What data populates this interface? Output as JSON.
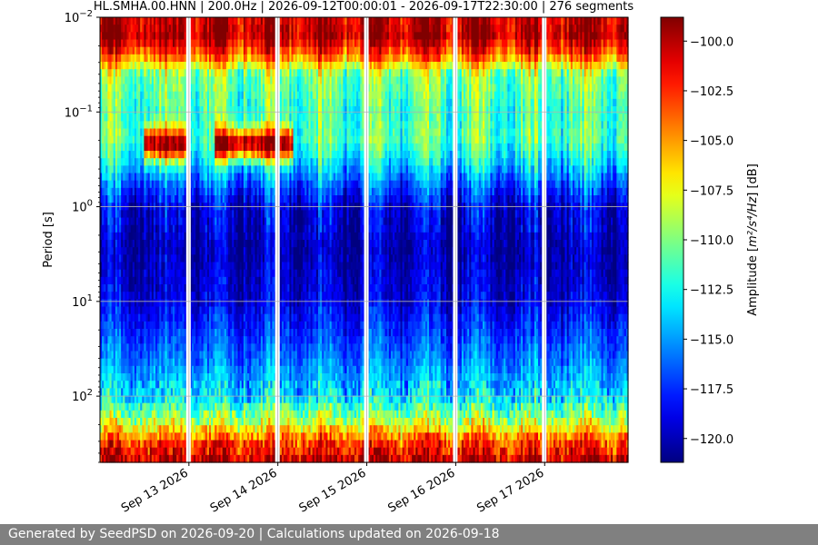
{
  "chart_data": {
    "type": "heatmap",
    "title": "HL.SMHA.00.HNN | 200.0Hz | 2026-09-12T00:00:01 - 2026-09-17T22:30:00 | 276 segments",
    "xlabel": "",
    "ylabel": "Period [s]",
    "y_scale": "log",
    "y_inverted": true,
    "ylim": [
      0.01,
      500
    ],
    "x_range": [
      "2026-09-12T00:00:01",
      "2026-09-17T22:30:00"
    ],
    "x_ticks": [
      {
        "date": "2026-09-13",
        "label": "Sep 13 2026"
      },
      {
        "date": "2026-09-14",
        "label": "Sep 14 2026"
      },
      {
        "date": "2026-09-15",
        "label": "Sep 15 2026"
      },
      {
        "date": "2026-09-16",
        "label": "Sep 16 2026"
      },
      {
        "date": "2026-09-17",
        "label": "Sep 17 2026"
      }
    ],
    "y_ticks": [
      {
        "value": 0.01,
        "base": "10",
        "exp": "−2"
      },
      {
        "value": 0.1,
        "base": "10",
        "exp": "−1"
      },
      {
        "value": 1,
        "base": "10",
        "exp": "0"
      },
      {
        "value": 10,
        "base": "10",
        "exp": "1"
      },
      {
        "value": 100,
        "base": "10",
        "exp": "2"
      }
    ],
    "gaps": [
      "2026-09-13",
      "2026-09-14",
      "2026-09-15",
      "2026-09-16",
      "2026-09-17"
    ],
    "grid": true,
    "colormap": "jet",
    "colorbar": {
      "label_prefix": "Amplitude [",
      "label_unit": "m²/s⁴/Hz",
      "label_suffix": "] [dB]",
      "range": [
        -121.2,
        -98.8
      ],
      "ticks": [
        "−100.0",
        "−102.5",
        "−105.0",
        "−107.5",
        "−110.0",
        "−112.5",
        "−115.0",
        "−117.5",
        "−120.0"
      ],
      "tick_values": [
        -100.0,
        -102.5,
        -105.0,
        -107.5,
        -110.0,
        -112.5,
        -115.0,
        -117.5,
        -120.0
      ]
    },
    "profile": [
      {
        "period": 0.01,
        "db": -100.5
      },
      {
        "period": 0.016,
        "db": -99.8
      },
      {
        "period": 0.025,
        "db": -103.5
      },
      {
        "period": 0.04,
        "db": -110.0
      },
      {
        "period": 0.1,
        "db": -111.5
      },
      {
        "period": 0.2,
        "db": -111.0
      },
      {
        "period": 0.35,
        "db": -113.5
      },
      {
        "period": 0.6,
        "db": -116.5
      },
      {
        "period": 1.0,
        "db": -119.0
      },
      {
        "period": 3.0,
        "db": -120.0
      },
      {
        "period": 10.0,
        "db": -119.0
      },
      {
        "period": 30.0,
        "db": -116.5
      },
      {
        "period": 100.0,
        "db": -113.5
      },
      {
        "period": 200.0,
        "db": -108.0
      },
      {
        "period": 300.0,
        "db": -103.0
      },
      {
        "period": 500.0,
        "db": -100.0
      }
    ],
    "events": [
      {
        "start": "2026-09-12T12:00:00",
        "end": "2026-09-13T00:00:00",
        "period": 0.22,
        "db": -99.5
      },
      {
        "start": "2026-09-13T07:00:00",
        "end": "2026-09-14T04:00:00",
        "period": 0.22,
        "db": -99.5
      }
    ]
  },
  "footer": {
    "text": "Generated by SeedPSD on 2026-09-20 | Calculations updated on 2026-09-18"
  }
}
